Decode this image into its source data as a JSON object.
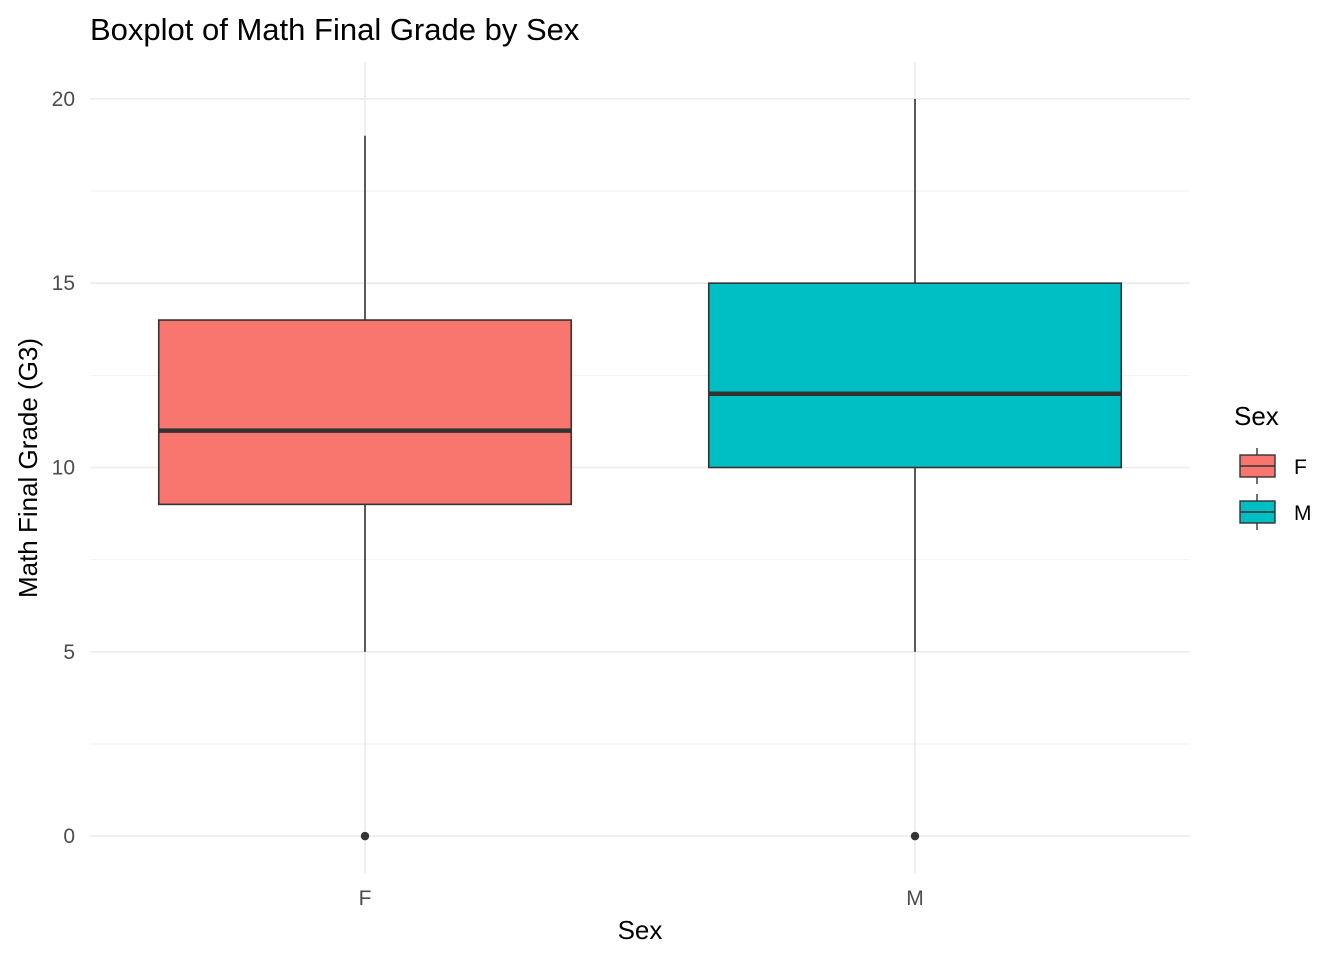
{
  "chart_data": {
    "type": "box",
    "title": "Boxplot of Math Final Grade by Sex",
    "xlabel": "Sex",
    "ylabel": "Math Final Grade (G3)",
    "categories": [
      "F",
      "M"
    ],
    "ylim": [
      -1,
      21
    ],
    "yticks": [
      0,
      5,
      10,
      15,
      20
    ],
    "ytick_labels": [
      "0",
      "5",
      "10",
      "15",
      "20"
    ],
    "grid": true,
    "legend": {
      "title": "Sex",
      "position": "right",
      "entries": [
        "F",
        "M"
      ]
    },
    "colors": {
      "F": "#F8766D",
      "M": "#00BFC4",
      "outline": "#333333"
    },
    "boxes": [
      {
        "category": "F",
        "whisker_low": 5,
        "q1": 9,
        "median": 11,
        "q3": 14,
        "whisker_high": 19,
        "outliers": [
          0
        ]
      },
      {
        "category": "M",
        "whisker_low": 5,
        "q1": 10,
        "median": 12,
        "q3": 15,
        "whisker_high": 20,
        "outliers": [
          0
        ]
      }
    ]
  }
}
